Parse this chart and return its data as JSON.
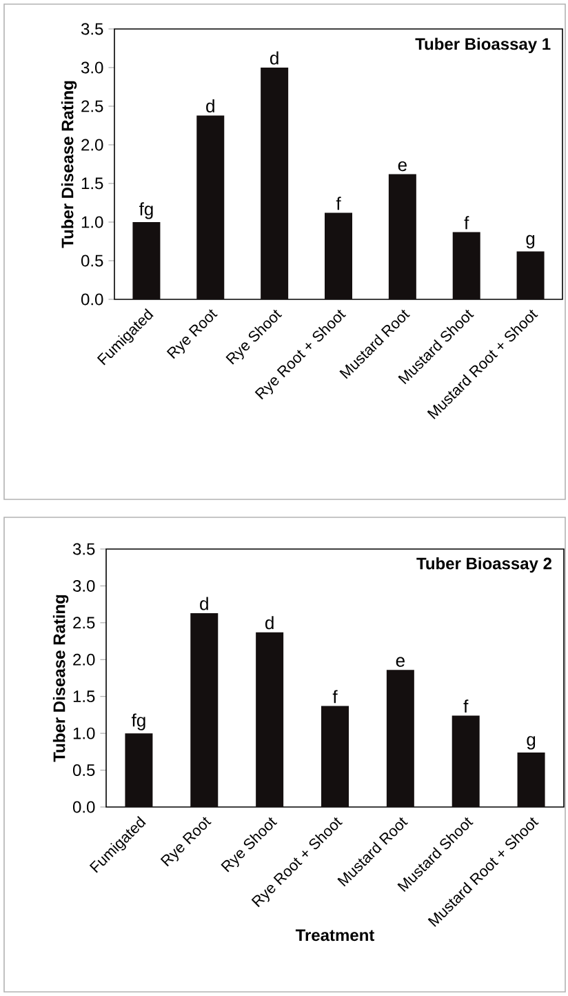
{
  "chart_data": [
    {
      "type": "bar",
      "title": "Tuber Bioassay 1",
      "ylabel": "Tuber Disease Rating",
      "categories": [
        "Fumigated",
        "Rye Root",
        "Rye Shoot",
        "Rye Root + Shoot",
        "Mustard Root",
        "Mustard Shoot",
        "Mustard Root + Shoot"
      ],
      "values": [
        1.0,
        2.38,
        3.0,
        1.12,
        1.62,
        0.87,
        0.62
      ],
      "color": "#140f0f",
      "ylim": [
        0,
        3.5
      ],
      "yticks": [
        {
          "value": 0,
          "label": "0.0"
        },
        {
          "value": 0.5,
          "label": "0.5"
        },
        {
          "value": 1,
          "label": "1.0"
        },
        {
          "value": 1.5,
          "label": "1.5"
        },
        {
          "value": 2,
          "label": "2.0"
        },
        {
          "value": 2.5,
          "label": "2.5"
        },
        {
          "value": 3,
          "label": "3.0"
        },
        {
          "value": 3.5,
          "label": "3.5"
        }
      ],
      "annotations": [
        {
          "text": "fg",
          "x": "Fumigated",
          "y": 1.0
        },
        {
          "text": "d",
          "x": "Rye Root",
          "y": 2.38
        },
        {
          "text": "d",
          "x": "Rye Shoot",
          "y": 3.0
        },
        {
          "text": "f",
          "x": "Rye Root + Shoot",
          "y": 1.12
        },
        {
          "text": "e",
          "x": "Mustard Root",
          "y": 1.62
        },
        {
          "text": "f",
          "x": "Mustard Shoot",
          "y": 0.87
        },
        {
          "text": "g",
          "x": "Mustard Root + Shoot",
          "y": 0.62
        }
      ]
    },
    {
      "type": "bar",
      "title": "Tuber Bioassay 2",
      "ylabel": "Tuber Disease Rating",
      "xlabel": "Treatment",
      "categories": [
        "Fumigated",
        "Rye Root",
        "Rye Shoot",
        "Rye Root + Shoot",
        "Mustard Root",
        "Mustard Shoot",
        "Mustard Root + Shoot"
      ],
      "values": [
        1.0,
        2.63,
        2.37,
        1.37,
        1.86,
        1.24,
        0.74
      ],
      "color": "#140f0f",
      "ylim": [
        0,
        3.5
      ],
      "yticks": [
        {
          "value": 0,
          "label": "0.0"
        },
        {
          "value": 0.5,
          "label": "0.5"
        },
        {
          "value": 1,
          "label": "1.0"
        },
        {
          "value": 1.5,
          "label": "1.5"
        },
        {
          "value": 2,
          "label": "2.0"
        },
        {
          "value": 2.5,
          "label": "2.5"
        },
        {
          "value": 3,
          "label": "3.0"
        },
        {
          "value": 3.5,
          "label": "3.5"
        }
      ],
      "annotations": [
        {
          "text": "fg",
          "x": "Fumigated",
          "y": 1.0
        },
        {
          "text": "d",
          "x": "Rye Root",
          "y": 2.63
        },
        {
          "text": "d",
          "x": "Rye Shoot",
          "y": 2.37
        },
        {
          "text": "f",
          "x": "Rye Root + Shoot",
          "y": 1.37
        },
        {
          "text": "e",
          "x": "Mustard Root",
          "y": 1.86
        },
        {
          "text": "f",
          "x": "Mustard Shoot",
          "y": 1.24
        },
        {
          "text": "g",
          "x": "Mustard Root + Shoot",
          "y": 0.74
        }
      ]
    }
  ]
}
